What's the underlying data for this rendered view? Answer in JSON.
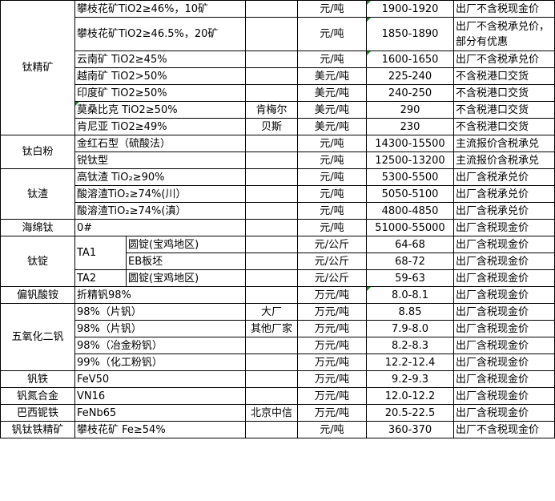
{
  "rows": [
    {
      "category": "钛精矿",
      "category_rowspan": 7,
      "spec": "攀枝花矿TiO2≥46%，10矿",
      "producer": "",
      "unit": "元/吨",
      "price": "1900-1920",
      "note": "出厂不含税现金价",
      "price_flag": true
    },
    {
      "spec": "攀枝花矿TiO2≥46.5%，20矿",
      "producer": "",
      "unit": "元/吨",
      "price": "1850-1890",
      "note": "出厂不含税承兑价，部分有优惠",
      "tall": true,
      "price_flag": true
    },
    {
      "spec": "云南矿 TiO2≥45%",
      "producer": "",
      "unit": "元/吨",
      "price": "1600-1650",
      "note": "出厂不含税承兑价",
      "price_flag": true
    },
    {
      "spec": "越南矿 TiO2>50%",
      "producer": "",
      "unit": "美元/吨",
      "price": "225-240",
      "note": "不含税港口交货"
    },
    {
      "spec": "印度矿 TiO2≥50%",
      "producer": "",
      "unit": "美元/吨",
      "price": "240-250",
      "note": "不含税港口交货"
    },
    {
      "spec": "莫桑比克 TiO2≥50%",
      "producer": "肯梅尔",
      "unit": "美元/吨",
      "price": "290",
      "note": "不含税港口交货",
      "spec_flag": true
    },
    {
      "spec": "肯尼亚 TiO2≥49%",
      "producer": "贝斯",
      "unit": "美元/吨",
      "price": "230",
      "note": "不含税港口交货"
    },
    {
      "category": "钛白粉",
      "category_rowspan": 2,
      "spec": "金红石型（硫酸法）",
      "producer": "",
      "unit": "元/吨",
      "price": "14300-15500",
      "note": "主流报价含税承兑"
    },
    {
      "spec": "锐钛型",
      "producer": "",
      "unit": "元/吨",
      "price": "12500-13200",
      "note": "主流报价含税承兑"
    },
    {
      "category": "钛渣",
      "category_rowspan": 3,
      "spec": "高钛渣 TiO₂≥90%",
      "producer": "",
      "unit": "元/吨",
      "price": "5300-5500",
      "note": "出厂含税承兑价"
    },
    {
      "spec": "酸溶渣TiO₂≥74%(川）",
      "producer": "",
      "unit": "元/吨",
      "price": "5050-5100",
      "note": "出厂含税承兑价"
    },
    {
      "spec": "酸溶渣TiO₂≥74%(滇）",
      "producer": "",
      "unit": "元/吨",
      "price": "4800-4850",
      "note": "出厂含税承兑价"
    },
    {
      "category": "海绵钛",
      "category_rowspan": 1,
      "spec": "0#",
      "producer": "",
      "unit": "元/吨",
      "price": "51000-55000",
      "note": "出厂含税现金价"
    },
    {
      "category": "钛锭",
      "category_rowspan": 3,
      "grade": "TA1",
      "grade_rowspan": 2,
      "spec": "圆锭(宝鸡地区)",
      "producer": "",
      "unit": "元/公斤",
      "price": "64-68",
      "note": "出厂含税现金价"
    },
    {
      "spec": "EB板坯",
      "producer": "",
      "unit": "元/公斤",
      "price": "68-72",
      "note": "出厂含税现金价",
      "in_grade": true
    },
    {
      "grade": "TA2",
      "grade_rowspan": 1,
      "spec": "圆锭(宝鸡地区)",
      "producer": "",
      "unit": "元/公斤",
      "price": "59-63",
      "note": "出厂含税现金价"
    },
    {
      "category": "偏钒酸铵",
      "category_rowspan": 1,
      "spec": "折精钒98%",
      "producer": "",
      "unit": "万元/吨",
      "price": "8.0-8.1",
      "note": "出厂含税现金价",
      "price_flag": true
    },
    {
      "category": "五氧化二钒",
      "category_rowspan": 4,
      "spec": "98%（片钒）",
      "producer": "大厂",
      "unit": "万元/吨",
      "price": "8.85",
      "note": "出厂含税现金价"
    },
    {
      "spec": "98%（片钒）",
      "producer": "其他厂家",
      "unit": "万元/吨",
      "price": "7.9-8.0",
      "note": "出厂含税现金价"
    },
    {
      "spec": "98%（冶金粉钒）",
      "producer": "",
      "unit": "万元/吨",
      "price": "8.2-8.3",
      "note": "出厂含税现金价"
    },
    {
      "spec": "99%（化工粉钒）",
      "producer": "",
      "unit": "万元/吨",
      "price": "12.2-12.4",
      "note": "出厂含税现金价"
    },
    {
      "category": "钒铁",
      "category_rowspan": 1,
      "spec": "FeV50",
      "producer": "",
      "unit": "万元/吨",
      "price": "9.2-9.3",
      "note": "出厂含税现金价"
    },
    {
      "category": "钒氮合金",
      "category_rowspan": 1,
      "spec": "VN16",
      "producer": "",
      "unit": "万元/吨",
      "price": "12.0-12.2",
      "note": "出厂含税现金价"
    },
    {
      "category": "巴西铌铁",
      "category_rowspan": 1,
      "spec": "FeNb65",
      "producer": "北京中信",
      "unit": "万元/吨",
      "price": "20.5-22.5",
      "note": "出厂含税现金价"
    },
    {
      "category": "钒钛铁精矿",
      "category_rowspan": 1,
      "spec": "攀枝花矿 Fe≥54%",
      "producer": "",
      "unit": "元/吨",
      "price": "360-370",
      "note": "出厂不含税现金价"
    }
  ]
}
